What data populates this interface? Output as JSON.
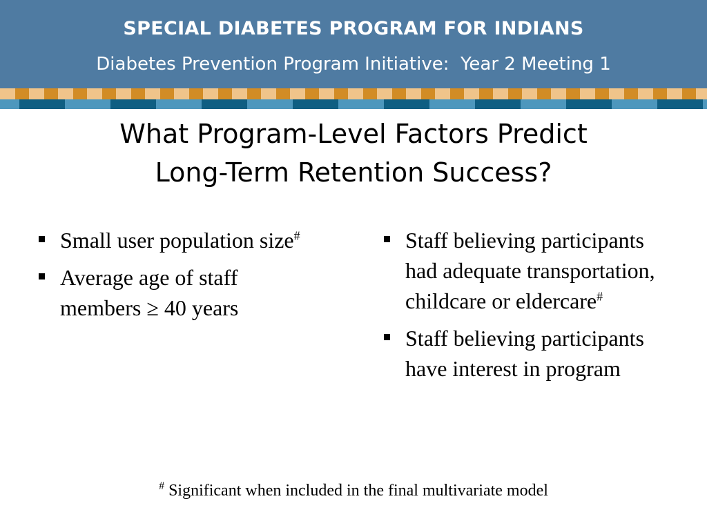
{
  "header": {
    "title": "SPECIAL DIABETES PROGRAM FOR INDIANS",
    "subtitle": "Diabetes Prevention Program Initiative:  Year 2 Meeting 1"
  },
  "slide": {
    "title_line1": "What Program-Level Factors Predict",
    "title_line2": "Long-Term Retention Success?"
  },
  "left_bullets": [
    {
      "text": "Small user population size",
      "mark": "#"
    },
    {
      "text_line1": "Average age of staff",
      "text_line2": "members ≥ 40 years"
    }
  ],
  "right_bullets": [
    {
      "text_line1": "Staff believing participants",
      "text_line2": "had adequate transportation,",
      "text_line3": "childcare or eldercare",
      "mark": "#"
    },
    {
      "text_line1": "Staff believing participants",
      "text_line2": "have interest in program"
    }
  ],
  "footnote": {
    "mark": "#",
    "text": " Significant when included in the final multivariate model"
  },
  "colors": {
    "header_bg": "#4f7ba2",
    "stripe_light_orange": "#f0c48a",
    "stripe_dark_orange": "#d28c25",
    "stripe_light_blue": "#4d97bd",
    "stripe_dark_blue": "#0f5e82"
  }
}
